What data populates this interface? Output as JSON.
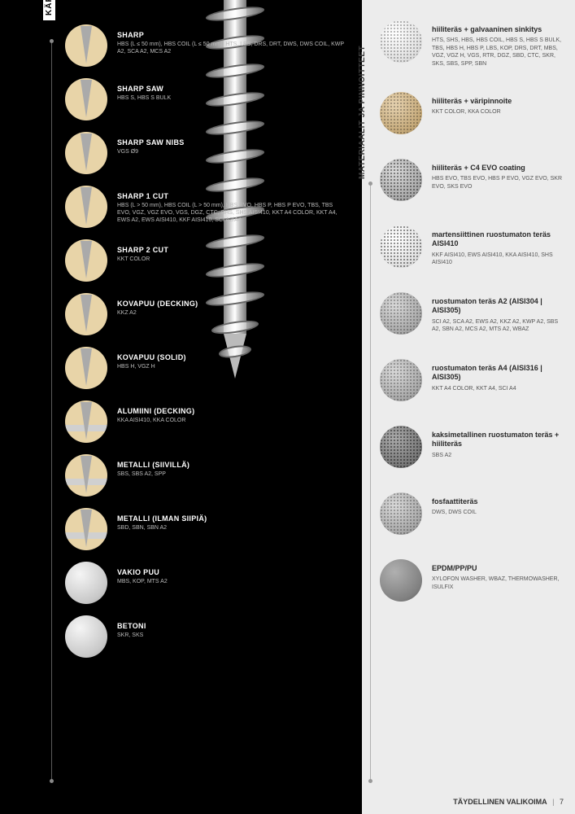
{
  "left": {
    "tab": "KÄRKI",
    "items": [
      {
        "title": "SHARP",
        "desc": "HBS (L ≤ 50 mm), HBS COIL (L ≤ 50 mm), HTS, LBS, DRS, DRT, DWS, DWS COIL, KWP A2, SCA A2, MCS A2",
        "icon": "sharp"
      },
      {
        "title": "SHARP SAW",
        "desc": "HBS S, HBS S BULK",
        "icon": "sharp"
      },
      {
        "title": "SHARP SAW NIBS",
        "desc": "VGS Ø9",
        "icon": "sharp"
      },
      {
        "title": "SHARP 1 CUT",
        "desc": "HBS (L > 50 mm), HBS COIL (L > 50 mm), HBS EVO, HBS P, HBS P EVO, TBS, TBS EVO, VGZ, VGZ EVO, VGS, DGZ, CTC, SHS, SHS AISI410, KKT A4 COLOR, KKT A4, EWS A2, EWS AISI410, KKF AISI410, SCI A2/A4",
        "icon": "sharp"
      },
      {
        "title": "SHARP 2 CUT",
        "desc": "KKT COLOR",
        "icon": "sharp"
      },
      {
        "title": "KOVAPUU (DECKING)",
        "desc": "KKZ A2",
        "icon": "sharp"
      },
      {
        "title": "KOVAPUU (SOLID)",
        "desc": "HBS H, VGZ H",
        "icon": "sharp"
      },
      {
        "title": "ALUMIINI (DECKING)",
        "desc": "KKA AISI410, KKA COLOR",
        "icon": "alum"
      },
      {
        "title": "METALLI (SIIVILLÄ)",
        "desc": "SBS, SBS A2, SPP",
        "icon": "alum"
      },
      {
        "title": "METALLI (ILMAN SIIPIÄ)",
        "desc": "SBD, SBN, SBN A2",
        "icon": "alum"
      },
      {
        "title": "VAKIO PUU",
        "desc": "MBS, KOP, MTS A2",
        "icon": "silver"
      },
      {
        "title": "BETONI",
        "desc": "SKR, SKS",
        "icon": "silver"
      }
    ]
  },
  "right": {
    "tab": "MATERIAALIT JA PINNOITTEET",
    "items": [
      {
        "title": "hiiliteräs + galvaaninen sinkitys",
        "desc": "HTS, SHS, HBS, HBS COIL, HBS S, HBS S BULK, TBS, HBS H, HBS P, LBS, KOP, DRS, DRT, MBS, VGZ, VGZ H, VGS, RTR, DGZ, SBD, CTC, SKR, SKS, SBS, SPP, SBN",
        "fill": "dot-light dots"
      },
      {
        "title": "hiiliteräs + väripinnoite",
        "desc": "KKT COLOR, KKA COLOR",
        "fill": "dot-tan dots"
      },
      {
        "title": "hiiliteräs + C4 EVO coating",
        "desc": "HBS EVO, TBS EVO, HBS P EVO, VGZ EVO, SKR EVO, SKS EVO",
        "fill": "dot-gray dots-strong"
      },
      {
        "title": "martensiittinen ruostumaton teräs AISI410",
        "desc": "KKF AISI410, EWS AISI410, KKA AISI410, SHS AISI410",
        "fill": "dot-light dots-strong"
      },
      {
        "title": "ruostumaton teräs A2 (AISI304 | AISI305)",
        "desc": "SCI A2, SCA A2, EWS A2, KKZ A2, KWP A2, SBS A2, SBN A2, MCS A2, MTS A2, WBAZ",
        "fill": "dot-gray dots"
      },
      {
        "title": "ruostumaton teräs A4 (AISI316 | AISI305)",
        "desc": "KKT A4 COLOR, KKT A4, SCI A4",
        "fill": "dot-gray dots"
      },
      {
        "title": "kaksimetallinen ruostumaton teräs + hiiliteräs",
        "desc": "SBS A2",
        "fill": "dot-dark dots-strong"
      },
      {
        "title": "fosfaattiteräs",
        "desc": "DWS, DWS COIL",
        "fill": "dot-gray dots"
      },
      {
        "title": "EPDM/PP/PU",
        "desc": "XYLOFON WASHER, WBAZ, THERMOWASHER, ISULFIX",
        "fill": "dot-solid"
      }
    ]
  },
  "footer": {
    "label": "TÄYDELLINEN VALIKOIMA",
    "page": "7"
  }
}
